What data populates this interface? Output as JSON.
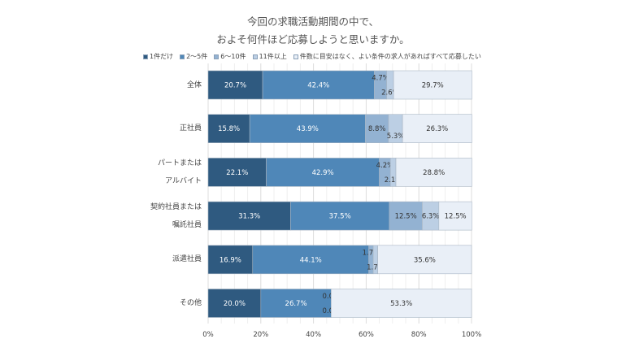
{
  "chart_data": {
    "type": "bar",
    "orientation": "horizontal-stacked-100",
    "title_lines": [
      "今回の求職活動期間の中で、",
      "およそ何件ほど応募しようと思いますか。"
    ],
    "categories": [
      [
        "全体"
      ],
      [
        "正社員"
      ],
      [
        "パートまたは",
        "アルバイト"
      ],
      [
        "契約社員または",
        "嘱託社員"
      ],
      [
        "派遣社員"
      ],
      [
        "その他"
      ]
    ],
    "series": [
      {
        "name": "1件だけ",
        "color": "#2f5a80",
        "values": [
          20.7,
          15.8,
          22.1,
          31.3,
          16.9,
          20.0
        ],
        "labels": [
          "20.7%",
          "15.8%",
          "22.1%",
          "31.3%",
          "16.9%",
          "20.0%"
        ]
      },
      {
        "name": "2～5件",
        "color": "#4f87b8",
        "values": [
          42.4,
          43.9,
          42.9,
          37.5,
          44.1,
          26.7
        ],
        "labels": [
          "42.4%",
          "43.9%",
          "42.9%",
          "37.5%",
          "44.1%",
          "26.7%"
        ]
      },
      {
        "name": "6～10件",
        "color": "#93b2d2",
        "values": [
          4.7,
          8.8,
          4.2,
          12.5,
          1.7,
          0.0
        ],
        "labels": [
          "4.7%",
          "8.8%",
          "4.2%",
          "12.5%",
          "1.7%",
          "0.0%"
        ]
      },
      {
        "name": "11件以上",
        "color": "#bccfe4",
        "values": [
          2.6,
          5.3,
          2.1,
          6.3,
          1.7,
          0.0
        ],
        "labels": [
          "2.6%",
          "5.3%",
          "2.1%",
          "6.3%",
          "1.7%",
          "0.0%"
        ]
      },
      {
        "name": "件数に目安はなく、よい条件の求人があればすべて応募したい",
        "color": "#e9eff7",
        "values": [
          29.7,
          26.3,
          28.8,
          12.5,
          35.6,
          53.3
        ],
        "labels": [
          "29.7%",
          "26.3%",
          "28.8%",
          "12.5%",
          "35.6%",
          "53.3%"
        ]
      }
    ],
    "xlim": [
      0,
      100
    ],
    "xticks": [
      "0%",
      "20%",
      "40%",
      "60%",
      "80%",
      "100%"
    ],
    "grid": true,
    "legend": "top"
  }
}
